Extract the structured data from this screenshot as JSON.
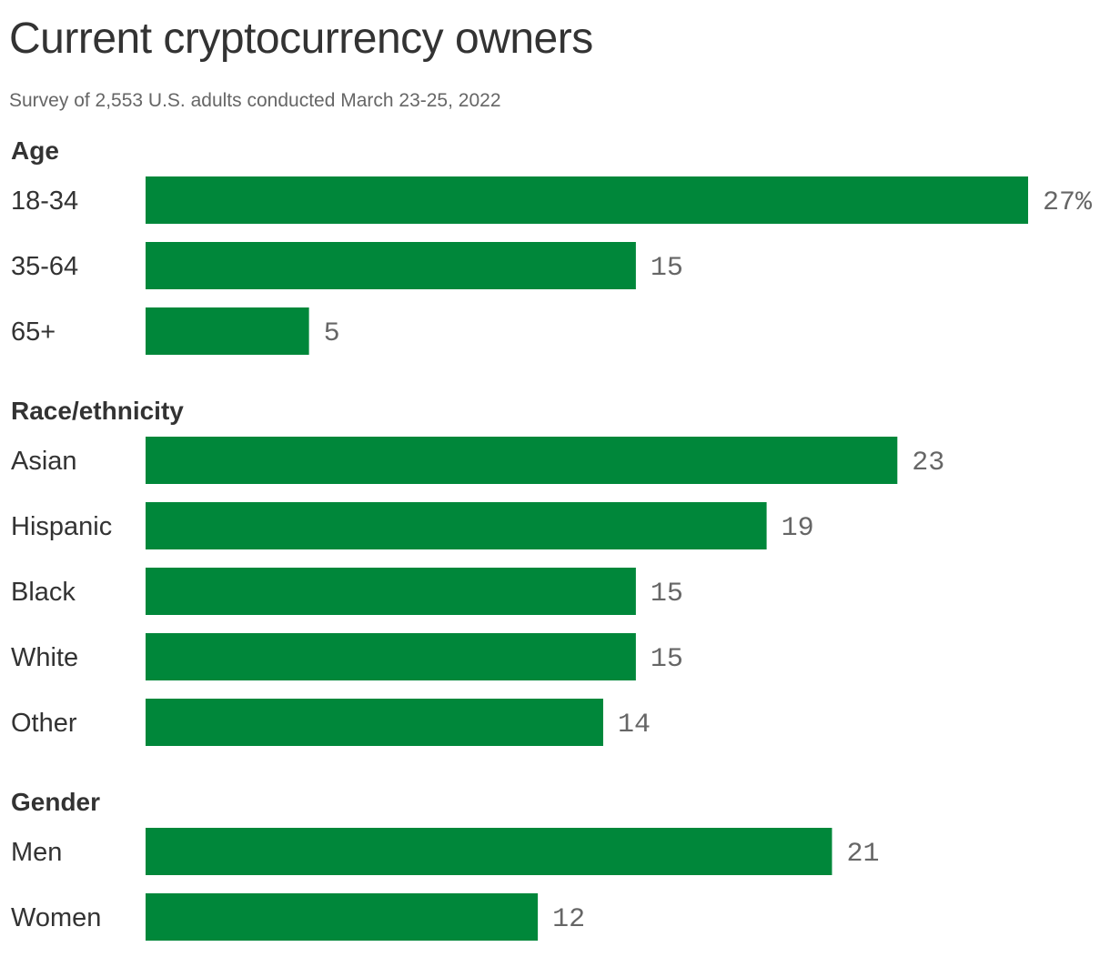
{
  "colors": {
    "bar": "#00873a",
    "title": "#333333",
    "subtitle": "#666666"
  },
  "chart_data": {
    "type": "bar",
    "orientation": "horizontal",
    "title": "Current cryptocurrency owners",
    "subtitle": "Survey of 2,553 U.S. adults conducted March 23-25, 2022",
    "unit": "%",
    "xlim": [
      0,
      27
    ],
    "grid": false,
    "legend": "none",
    "groups": [
      {
        "name": "Age",
        "categories": [
          "18-34",
          "35-64",
          "65+"
        ],
        "values": [
          27,
          15,
          5
        ]
      },
      {
        "name": "Race/ethnicity",
        "categories": [
          "Asian",
          "Hispanic",
          "Black",
          "White",
          "Other"
        ],
        "values": [
          23,
          19,
          15,
          15,
          14
        ]
      },
      {
        "name": "Gender",
        "categories": [
          "Men",
          "Women"
        ],
        "values": [
          21,
          12
        ]
      }
    ]
  }
}
